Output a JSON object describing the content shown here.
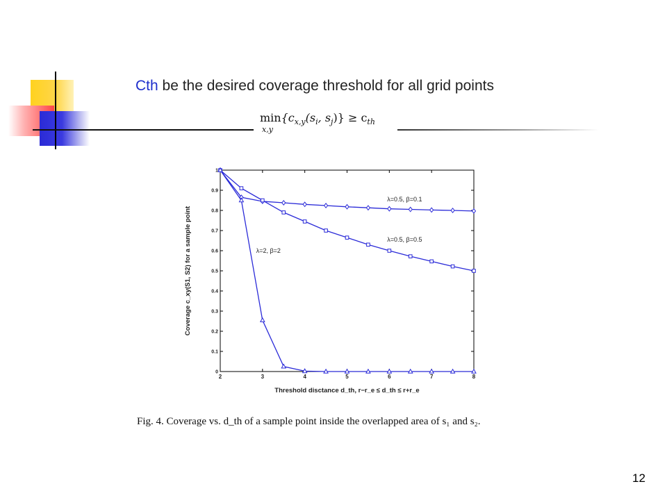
{
  "slide": {
    "heading_highlight": "Cth",
    "heading_rest": " be the desired coverage threshold for all grid points",
    "formula": {
      "min": "min",
      "min_sub": "x,y",
      "body": "{c",
      "body_sub": "x,y",
      "args": "(s",
      "args_sub1": "i",
      "comma": ", s",
      "args_sub2": "j",
      "close": ")} ≥ c",
      "rhs_sub": "th"
    },
    "caption": "Fig. 4.   Coverage vs. d_th of a sample point inside the overlapped area of s₁ and s₂.",
    "page_number": "12",
    "colors": {
      "accent_blue": "#1f2fcc",
      "series": "#2a2ad8"
    }
  },
  "chart_data": {
    "type": "line",
    "xlabel": "Threshold disctance  d_th,  r−r_e ≤ d_th ≤ r+r_e",
    "ylabel": "Coverage  c_xy(S1, S2) for a sample point",
    "xlim": [
      2,
      8
    ],
    "ylim": [
      0,
      1
    ],
    "x_ticks": [
      "2",
      "3",
      "4",
      "5",
      "6",
      "7",
      "8"
    ],
    "y_ticks": [
      "0",
      "0.1",
      "0.2",
      "0.3",
      "0.4",
      "0.5",
      "0.6",
      "0.7",
      "0.8",
      "0.9",
      "1"
    ],
    "x": [
      2,
      2.5,
      3,
      3.5,
      4,
      4.5,
      5,
      5.5,
      6,
      6.5,
      7,
      7.5,
      8
    ],
    "series": [
      {
        "name": "λ=0.5, β=0.1",
        "marker": "diamond",
        "values": [
          1.0,
          0.865,
          0.845,
          0.838,
          0.83,
          0.824,
          0.818,
          0.813,
          0.808,
          0.805,
          0.802,
          0.8,
          0.797
        ]
      },
      {
        "name": "λ=0.5, β=0.5",
        "marker": "square",
        "values": [
          1.0,
          0.91,
          0.85,
          0.79,
          0.745,
          0.7,
          0.665,
          0.63,
          0.6,
          0.572,
          0.547,
          0.522,
          0.5
        ]
      },
      {
        "name": "λ=2, β=2",
        "marker": "triangle",
        "values": [
          1.0,
          0.85,
          0.255,
          0.025,
          0.002,
          0.0,
          0.0,
          0.0,
          0.0,
          0.0,
          0.0,
          0.0,
          0.0
        ]
      }
    ],
    "annotations": [
      "λ=0.5, β=0.1",
      "λ=0.5, β=0.5",
      "λ=2, β=2"
    ],
    "grid": false
  }
}
